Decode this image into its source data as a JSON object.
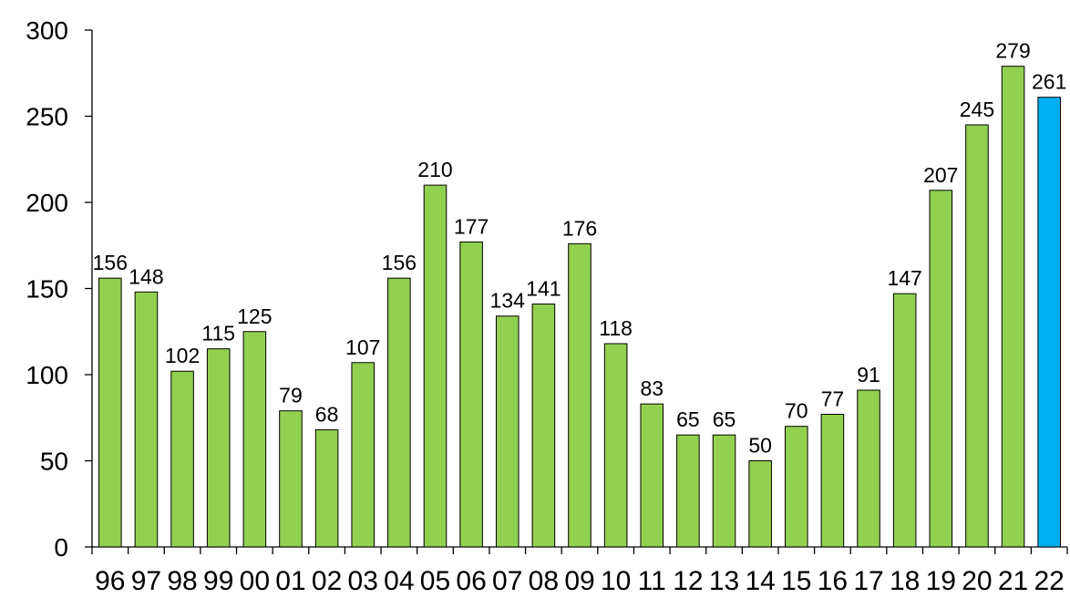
{
  "chart_data": {
    "type": "bar",
    "categories": [
      "96",
      "97",
      "98",
      "99",
      "00",
      "01",
      "02",
      "03",
      "04",
      "05",
      "06",
      "07",
      "08",
      "09",
      "10",
      "11",
      "12",
      "13",
      "14",
      "15",
      "16",
      "17",
      "18",
      "19",
      "20",
      "21",
      "22"
    ],
    "values": [
      156,
      148,
      102,
      115,
      125,
      79,
      68,
      107,
      156,
      210,
      177,
      134,
      141,
      176,
      118,
      83,
      65,
      65,
      50,
      70,
      77,
      91,
      147,
      207,
      245,
      279,
      261
    ],
    "data_labels": [
      "156",
      "148",
      "102",
      "115",
      "125",
      "79",
      "68",
      "107",
      "156",
      "210",
      "177",
      "134",
      "141",
      "176",
      "118",
      "83",
      "65",
      "65",
      "50",
      "70",
      "77",
      "91",
      "147",
      "207",
      "245",
      "279",
      "261"
    ],
    "y_ticks": [
      0,
      50,
      100,
      150,
      200,
      250,
      300
    ],
    "y_tick_labels": [
      "0",
      "50",
      "100",
      "150",
      "200",
      "250",
      "300"
    ],
    "ylim": [
      0,
      300
    ],
    "title": "",
    "xlabel": "",
    "ylabel": "",
    "grid": false,
    "colors": {
      "bar": "#92d050",
      "highlight_bar": "#00b0f0",
      "bar_outline": "#000000",
      "axis": "#000000"
    },
    "highlight_index": 26
  }
}
